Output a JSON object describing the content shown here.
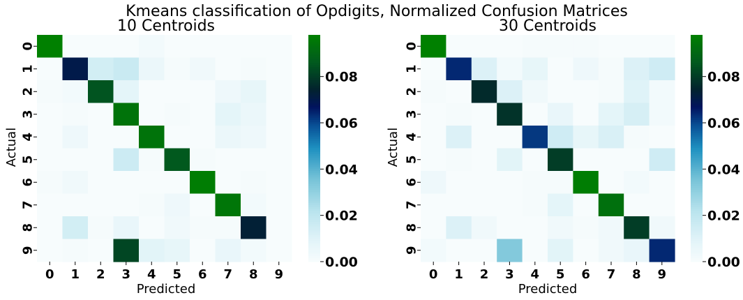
{
  "figure": {
    "title": "Kmeans classification of Opdigits, Normalized Confusion Matrices"
  },
  "chart_data": [
    {
      "type": "heatmap",
      "title": "10 Centroids",
      "xlabel": "Predicted",
      "ylabel": "Actual",
      "x_ticks": [
        "0",
        "1",
        "2",
        "3",
        "4",
        "5",
        "6",
        "7",
        "8",
        "9"
      ],
      "y_ticks": [
        "0",
        "1",
        "2",
        "3",
        "4",
        "5",
        "6",
        "7",
        "8",
        "9"
      ],
      "colorbar": {
        "ticks": [
          "0.00",
          "0.02",
          "0.04",
          "0.06",
          "0.08"
        ],
        "min": 0.0,
        "max": 0.098
      },
      "values": [
        [
          0.098,
          0,
          0,
          0,
          0.002,
          0,
          0,
          0,
          0,
          0
        ],
        [
          0,
          0.07,
          0.014,
          0.017,
          0.005,
          0.001,
          0.003,
          0,
          0.001,
          0
        ],
        [
          0.001,
          0.002,
          0.085,
          0.008,
          0,
          0,
          0,
          0.004,
          0.007,
          0
        ],
        [
          0,
          0.001,
          0,
          0.094,
          0,
          0.001,
          0,
          0.008,
          0.005,
          0
        ],
        [
          0,
          0.004,
          0,
          0,
          0.094,
          0,
          0,
          0.005,
          0.004,
          0
        ],
        [
          0,
          0,
          0,
          0.016,
          0.001,
          0.086,
          0.001,
          0,
          0,
          0
        ],
        [
          0.001,
          0.003,
          0,
          0,
          0,
          0,
          0.097,
          0,
          0.001,
          0
        ],
        [
          0,
          0,
          0,
          0,
          0.001,
          0.004,
          0,
          0.095,
          0.002,
          0
        ],
        [
          0,
          0.014,
          0.001,
          0.006,
          0,
          0.003,
          0.001,
          0.001,
          0.073,
          0
        ],
        [
          0,
          0.001,
          0,
          0.082,
          0.009,
          0.007,
          0,
          0.006,
          0.002,
          0
        ]
      ]
    },
    {
      "type": "heatmap",
      "title": "30 Centroids",
      "xlabel": "Predicted",
      "ylabel": "Actual",
      "x_ticks": [
        "0",
        "1",
        "2",
        "3",
        "4",
        "5",
        "6",
        "7",
        "8",
        "9"
      ],
      "y_ticks": [
        "0",
        "1",
        "2",
        "3",
        "4",
        "5",
        "6",
        "7",
        "8",
        "9"
      ],
      "colorbar": {
        "ticks": [
          "0.00",
          "0.02",
          "0.04",
          "0.06",
          "0.08"
        ],
        "min": 0.0,
        "max": 0.098
      },
      "values": [
        [
          0.098,
          0,
          0,
          0,
          0.001,
          0.001,
          0.001,
          0,
          0,
          0
        ],
        [
          0,
          0.064,
          0.011,
          0.002,
          0.007,
          0,
          0.004,
          0.001,
          0.011,
          0.015
        ],
        [
          0.001,
          0,
          0.076,
          0.011,
          0.003,
          0,
          0,
          0.001,
          0.01,
          0.002
        ],
        [
          0,
          0.001,
          0,
          0.078,
          0,
          0.006,
          0,
          0.008,
          0.013,
          0.002
        ],
        [
          0,
          0.011,
          0,
          0,
          0.062,
          0.015,
          0.007,
          0.012,
          0.001,
          0
        ],
        [
          0,
          0.001,
          0,
          0.009,
          0,
          0.08,
          0,
          0,
          0,
          0.015
        ],
        [
          0.004,
          0,
          0,
          0,
          0.001,
          0.001,
          0.097,
          0,
          0.002,
          0
        ],
        [
          0,
          0,
          0,
          0,
          0.001,
          0.008,
          0,
          0.093,
          0,
          0
        ],
        [
          0,
          0.011,
          0.003,
          0,
          0,
          0.003,
          0.001,
          0.003,
          0.08,
          0.003
        ],
        [
          0.002,
          0,
          0,
          0.033,
          0,
          0.009,
          0,
          0.003,
          0.006,
          0.064
        ]
      ]
    }
  ]
}
